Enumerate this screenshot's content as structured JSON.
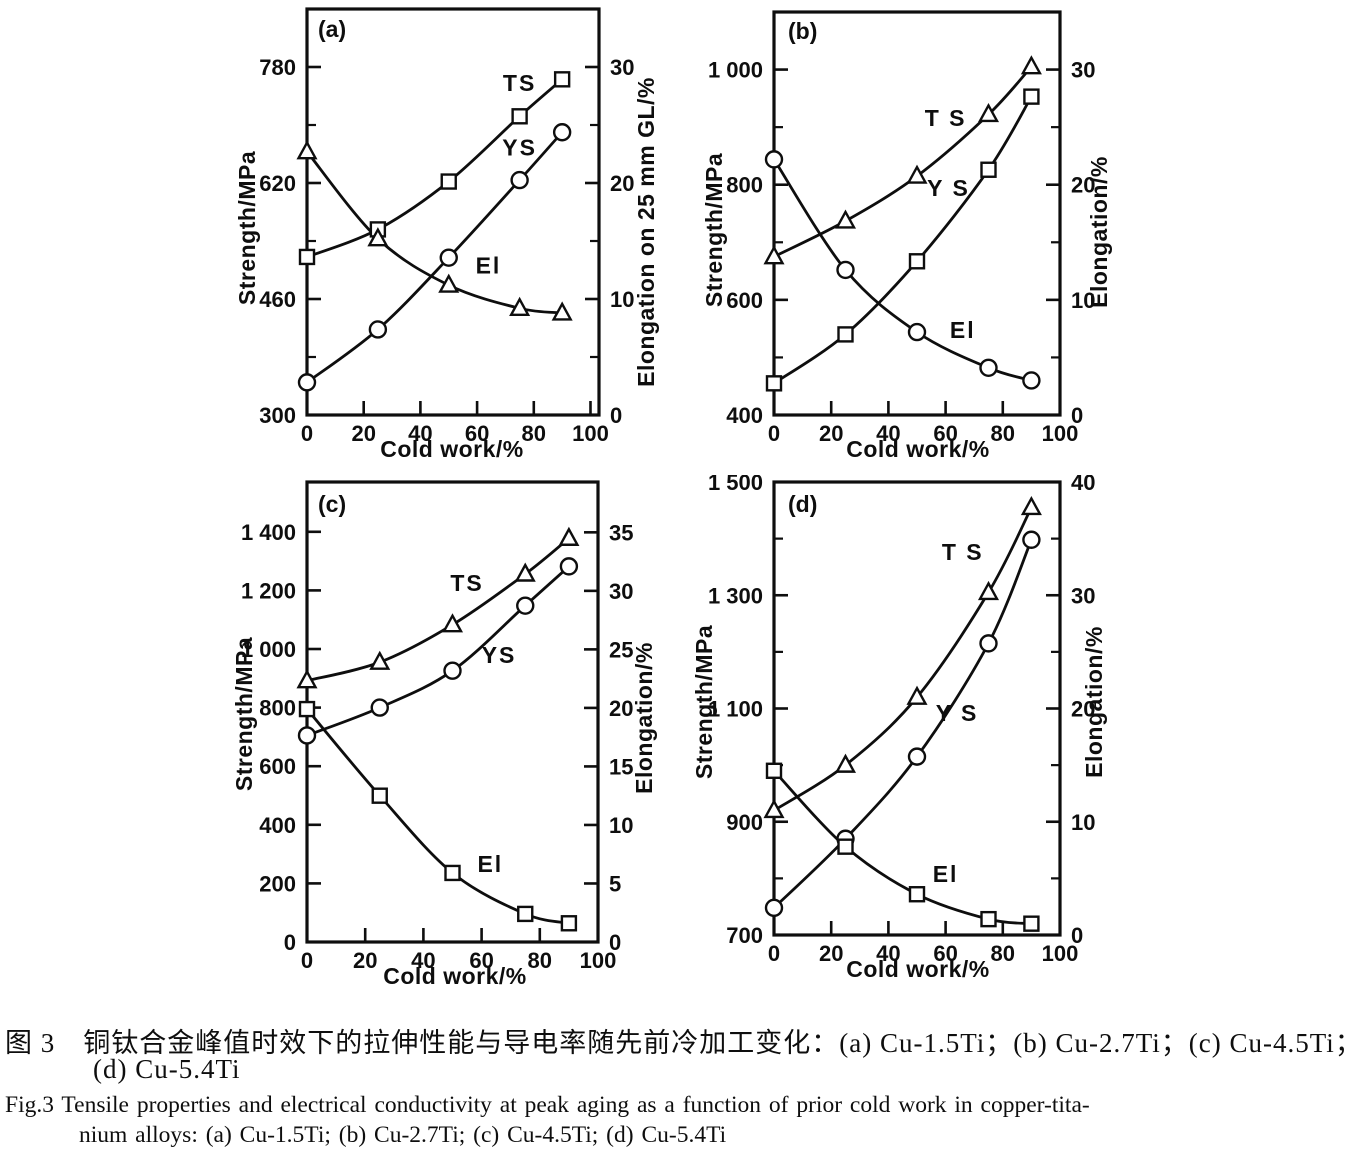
{
  "figure": {
    "caption": {
      "zh_line1": "图 3　铜钛合金峰值时效下的拉伸性能与导电率随先前冷加工变化：(a) Cu-1.5Ti；(b) Cu-2.7Ti；(c) Cu-4.5Ti；",
      "zh_line2": "(d) Cu-5.4Ti",
      "en_line1": "Fig.3 Tensile properties and electrical conductivity at peak aging as a function of prior cold work in copper-tita-",
      "en_line2": "nium alloys: (a) Cu-1.5Ti; (b) Cu-2.7Ti; (c) Cu-4.5Ti; (d) Cu-5.4Ti"
    }
  },
  "chart_data": [
    {
      "type": "line",
      "panel_label": "(a)",
      "xlabel": "Cold work/%",
      "x_ticks": [
        0,
        20,
        40,
        60,
        80,
        100
      ],
      "xlim": [
        0,
        103
      ],
      "x": [
        0,
        25,
        50,
        75,
        90
      ],
      "left_axis": {
        "label": "Strength/MPa",
        "lim": [
          300,
          860
        ],
        "ticks": [
          300,
          460,
          620,
          780
        ],
        "tick_labels": [
          "300",
          "460",
          "620",
          "780"
        ],
        "minor_ticks": [
          380,
          540,
          700
        ]
      },
      "right_axis": {
        "label": "Elongation on 25 mm GL/%",
        "lim": [
          0,
          35
        ],
        "ticks": [
          0,
          10,
          20,
          30
        ],
        "tick_labels": [
          "0",
          "10",
          "20",
          "30"
        ],
        "minor_ticks": [
          5,
          15,
          25
        ]
      },
      "series": [
        {
          "name": "TS",
          "label": "TS",
          "axis": "left",
          "marker": "square",
          "values": [
            518,
            556,
            622,
            712,
            763
          ],
          "label_pos": [
            75,
            747
          ]
        },
        {
          "name": "YS",
          "label": "YS",
          "axis": "left",
          "marker": "circle",
          "values": [
            345,
            418,
            517,
            624,
            690
          ],
          "label_pos": [
            75,
            658
          ]
        },
        {
          "name": "El",
          "label": "El",
          "axis": "right",
          "marker": "triangle",
          "values": [
            22.7,
            15.2,
            11.2,
            9.2,
            8.8
          ],
          "label_pos": [
            64,
            12.2
          ]
        }
      ]
    },
    {
      "type": "line",
      "panel_label": "(b)",
      "xlabel": "Cold work/%",
      "x_ticks": [
        0,
        20,
        40,
        60,
        80,
        100
      ],
      "xlim": [
        0,
        100
      ],
      "x": [
        0,
        25,
        50,
        75,
        90
      ],
      "left_axis": {
        "label": "Strength/MPa",
        "lim": [
          400,
          1100
        ],
        "ticks": [
          400,
          600,
          800,
          1000
        ],
        "tick_labels": [
          "400",
          "600",
          "800",
          "1 000"
        ],
        "minor_ticks": [
          500,
          700,
          900
        ]
      },
      "right_axis": {
        "label": "Elongation/%",
        "lim": [
          0,
          35
        ],
        "ticks": [
          0,
          10,
          20,
          30
        ],
        "tick_labels": [
          "0",
          "10",
          "20",
          "30"
        ],
        "minor_ticks": [
          5,
          15,
          25
        ]
      },
      "series": [
        {
          "name": "TS",
          "label": "T S",
          "axis": "left",
          "marker": "triangle",
          "values": [
            675,
            737,
            815,
            922,
            1005
          ],
          "label_pos": [
            60,
            902
          ]
        },
        {
          "name": "YS",
          "label": "Y S",
          "axis": "left",
          "marker": "square",
          "values": [
            455,
            540,
            667,
            826,
            953
          ],
          "label_pos": [
            61,
            780
          ]
        },
        {
          "name": "El",
          "label": "El",
          "axis": "right",
          "marker": "circle",
          "values": [
            22.2,
            12.6,
            7.2,
            4.1,
            3.0
          ],
          "label_pos": [
            66,
            6.7
          ]
        }
      ]
    },
    {
      "type": "line",
      "panel_label": "(c)",
      "xlabel": "Cold work/%",
      "x_ticks": [
        0,
        20,
        40,
        60,
        80,
        100
      ],
      "xlim": [
        0,
        100
      ],
      "x": [
        0,
        25,
        50,
        75,
        90
      ],
      "left_axis": {
        "label": "Strength/MPa",
        "lim": [
          0,
          1570
        ],
        "ticks": [
          0,
          200,
          400,
          600,
          800,
          1000,
          1200,
          1400
        ],
        "tick_labels": [
          "0",
          "200",
          "400",
          "600",
          "800",
          "1 000",
          "1 200",
          "1 400"
        ],
        "minor_ticks": []
      },
      "right_axis": {
        "label": "Elongation/%",
        "lim": [
          0,
          39.3
        ],
        "ticks": [
          0,
          5,
          10,
          15,
          20,
          25,
          30,
          35
        ],
        "tick_labels": [
          "0",
          "5",
          "10",
          "15",
          "20",
          "25",
          "30",
          "35"
        ],
        "minor_ticks": []
      },
      "series": [
        {
          "name": "TS",
          "label": "TS",
          "axis": "left",
          "marker": "triangle",
          "values": [
            892,
            955,
            1083,
            1256,
            1378
          ],
          "label_pos": [
            55,
            1198
          ]
        },
        {
          "name": "YS",
          "label": "YS",
          "axis": "left",
          "marker": "circle",
          "values": [
            705,
            800,
            926,
            1148,
            1282
          ],
          "label_pos": [
            66,
            952
          ]
        },
        {
          "name": "El",
          "label": "El",
          "axis": "right",
          "marker": "square",
          "values": [
            19.9,
            12.5,
            5.9,
            2.4,
            1.6
          ],
          "label_pos": [
            63,
            6.0
          ]
        }
      ]
    },
    {
      "type": "line",
      "panel_label": "(d)",
      "xlabel": "Cold work/%",
      "x_ticks": [
        0,
        20,
        40,
        60,
        80,
        100
      ],
      "xlim": [
        0,
        100
      ],
      "x": [
        0,
        25,
        50,
        75,
        90
      ],
      "left_axis": {
        "label": "Strength/MPa",
        "lim": [
          700,
          1500
        ],
        "ticks": [
          700,
          900,
          1100,
          1300,
          1500
        ],
        "tick_labels": [
          "700",
          "900",
          "1 100",
          "1 300",
          "1 500"
        ],
        "minor_ticks": [
          800,
          1000,
          1200,
          1400
        ]
      },
      "right_axis": {
        "label": "Elongation/%",
        "lim": [
          0,
          40
        ],
        "ticks": [
          0,
          10,
          20,
          30,
          40
        ],
        "tick_labels": [
          "0",
          "10",
          "20",
          "30",
          "40"
        ],
        "minor_ticks": [
          5,
          15,
          25,
          35
        ]
      },
      "series": [
        {
          "name": "TS",
          "label": "T S",
          "axis": "left",
          "marker": "triangle",
          "values": [
            920,
            1000,
            1120,
            1305,
            1455
          ],
          "label_pos": [
            66,
            1362
          ]
        },
        {
          "name": "YS",
          "label": "Y S",
          "axis": "left",
          "marker": "circle",
          "values": [
            748,
            870,
            1015,
            1215,
            1398
          ],
          "label_pos": [
            64,
            1078
          ]
        },
        {
          "name": "El",
          "label": "El",
          "axis": "right",
          "marker": "square",
          "values": [
            14.5,
            7.8,
            3.6,
            1.4,
            1.0
          ],
          "label_pos": [
            60,
            4.7
          ]
        }
      ]
    }
  ]
}
